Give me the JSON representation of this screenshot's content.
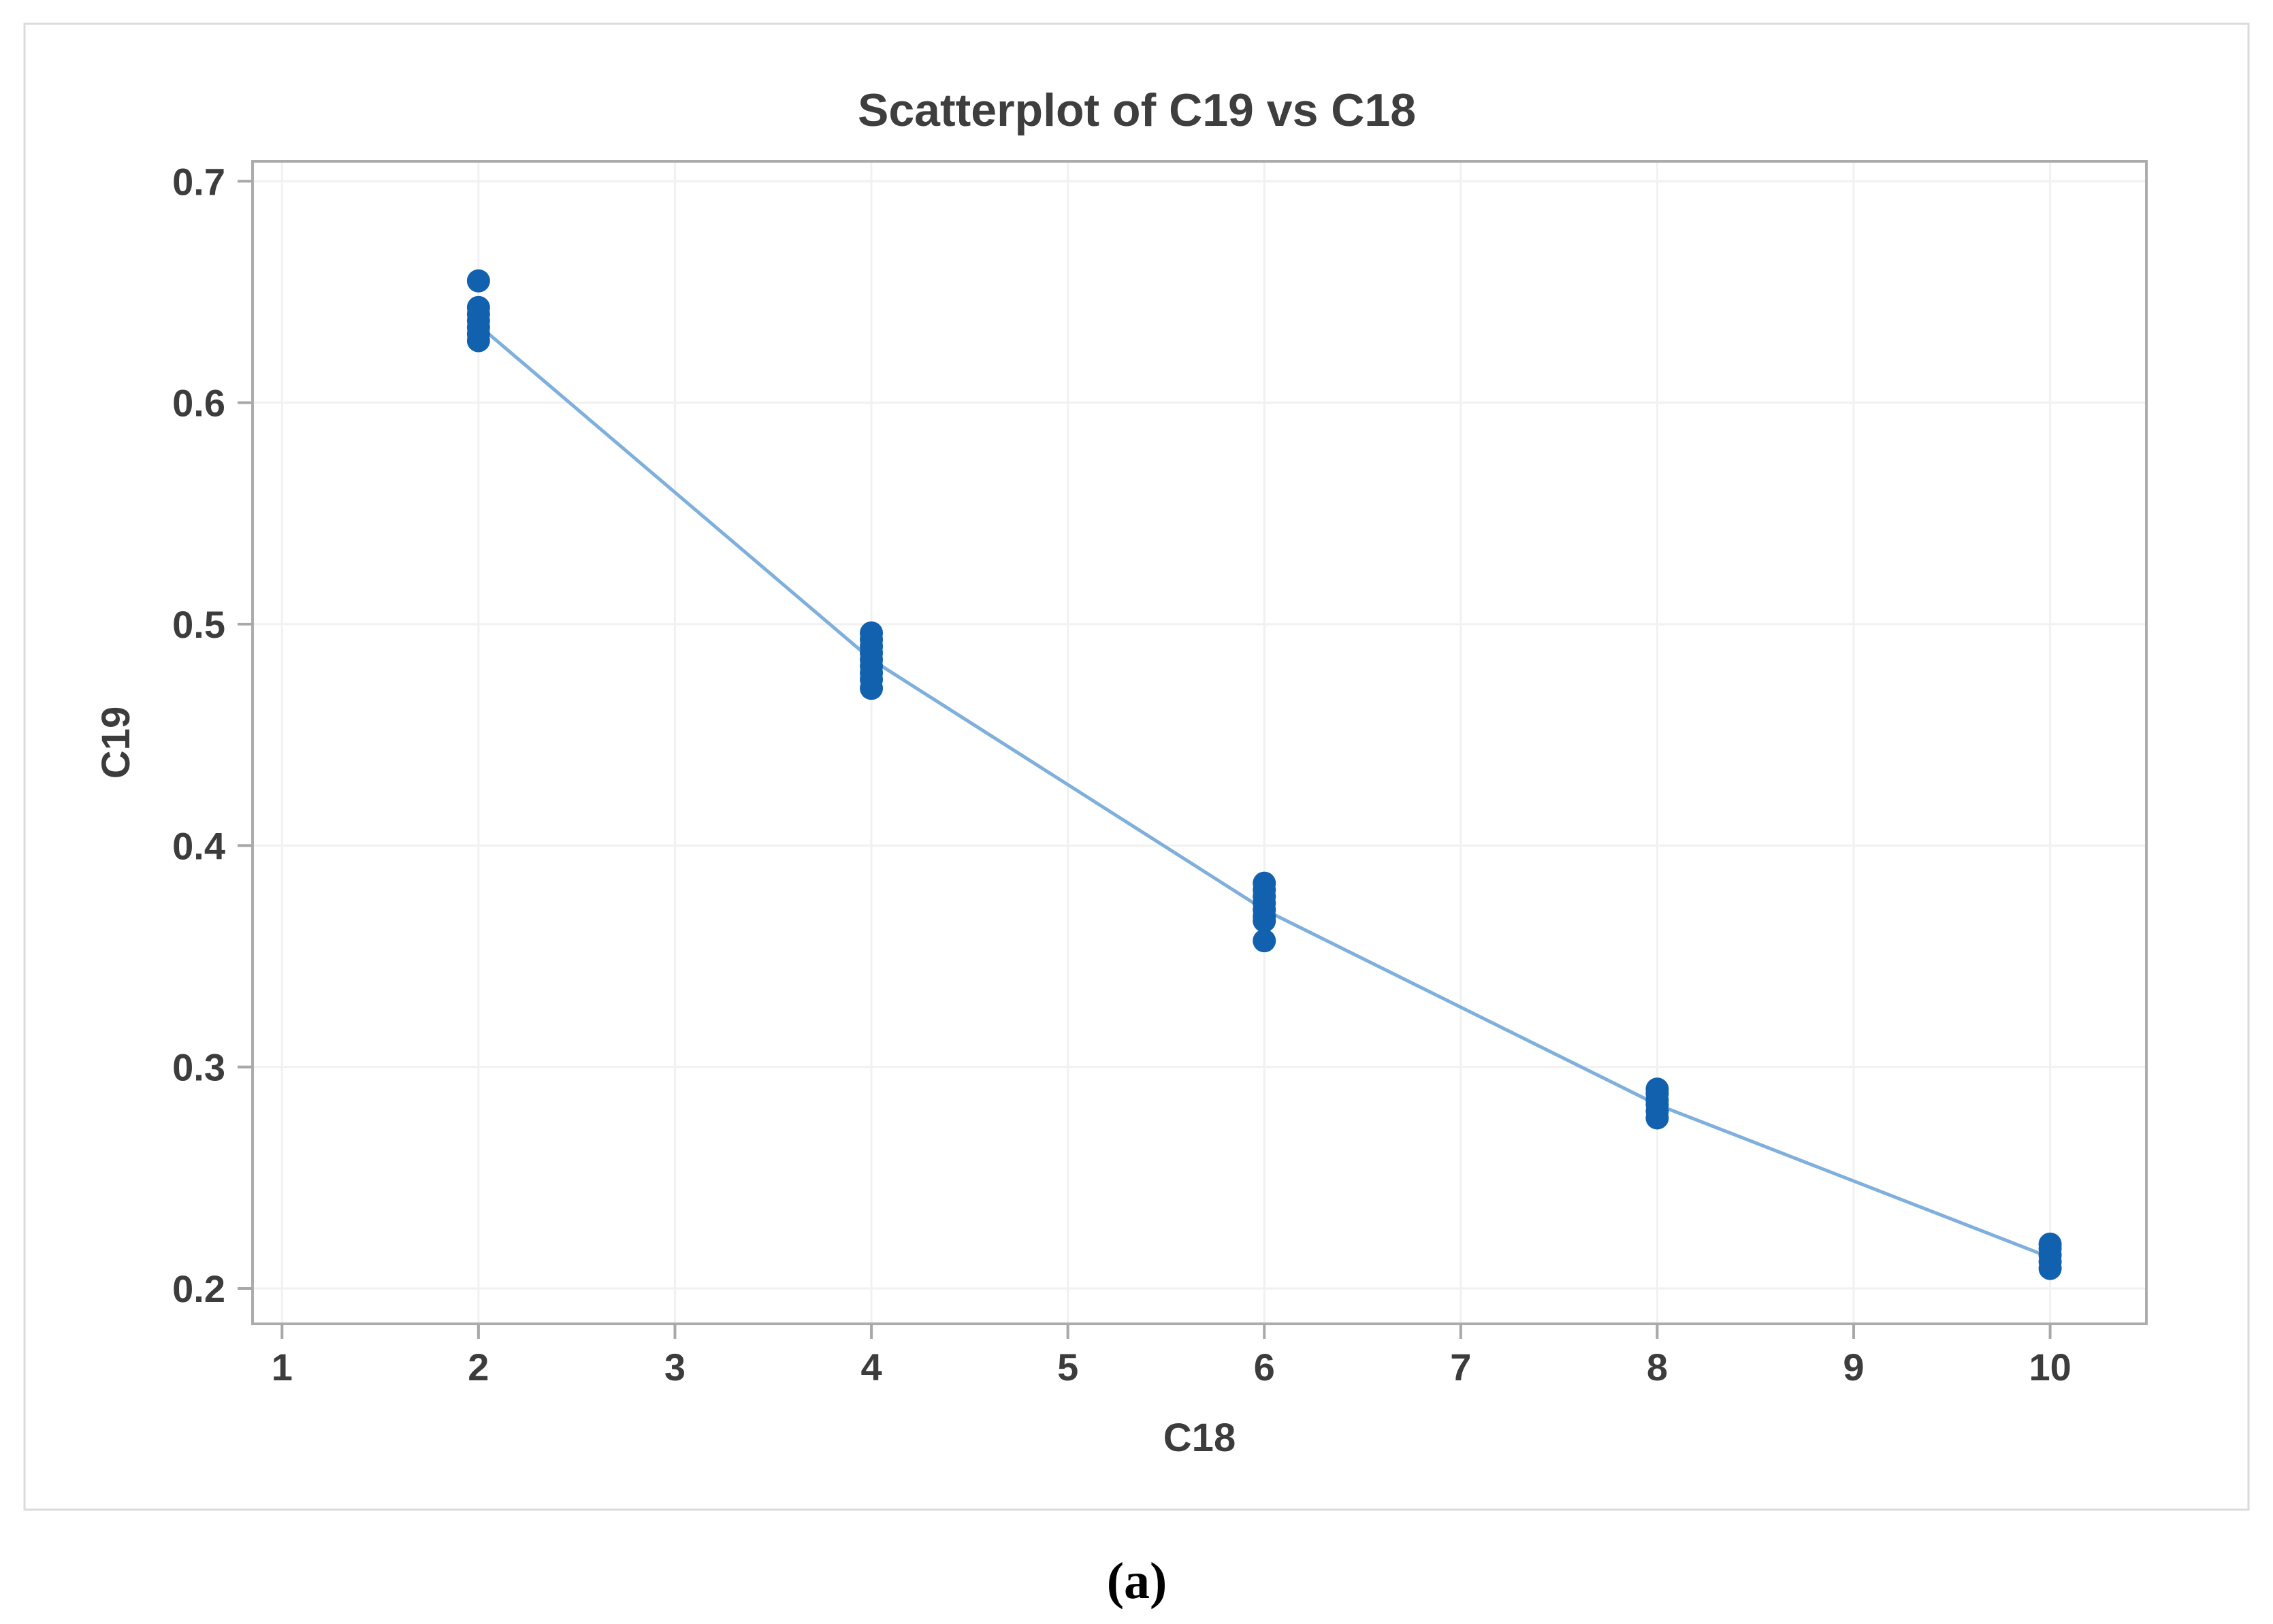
{
  "figure": {
    "caption": "(a)"
  },
  "chart_data": {
    "type": "scatter",
    "title": "Scatterplot of C19 vs C18",
    "xlabel": "C18",
    "ylabel": "C19",
    "xlim": [
      0.85,
      10.49
    ],
    "ylim": [
      0.184,
      0.709
    ],
    "x_ticks": [
      1,
      2,
      3,
      4,
      5,
      6,
      7,
      8,
      9,
      10
    ],
    "x_tick_labels": [
      "1",
      "2",
      "3",
      "4",
      "5",
      "6",
      "7",
      "8",
      "9",
      "10"
    ],
    "y_ticks": [
      0.2,
      0.3,
      0.4,
      0.5,
      0.6,
      0.7
    ],
    "y_tick_labels": [
      "0.2",
      "0.3",
      "0.4",
      "0.5",
      "0.6",
      "0.7"
    ],
    "grid": true,
    "legend": "none",
    "colors": {
      "marker": "#1161ae",
      "line": "#7fafdc"
    },
    "series": [
      {
        "name": "observations",
        "type": "scatter",
        "marker": "circle",
        "points": [
          [
            2,
            0.655
          ],
          [
            2,
            0.643
          ],
          [
            2,
            0.64
          ],
          [
            2,
            0.637
          ],
          [
            2,
            0.634
          ],
          [
            2,
            0.631
          ],
          [
            2,
            0.628
          ],
          [
            4,
            0.496
          ],
          [
            4,
            0.493
          ],
          [
            4,
            0.49
          ],
          [
            4,
            0.487
          ],
          [
            4,
            0.484
          ],
          [
            4,
            0.481
          ],
          [
            4,
            0.478
          ],
          [
            4,
            0.475
          ],
          [
            4,
            0.471
          ],
          [
            6,
            0.383
          ],
          [
            6,
            0.38
          ],
          [
            6,
            0.377
          ],
          [
            6,
            0.374
          ],
          [
            6,
            0.371
          ],
          [
            6,
            0.368
          ],
          [
            6,
            0.366
          ],
          [
            6,
            0.357
          ],
          [
            8,
            0.29
          ],
          [
            8,
            0.288
          ],
          [
            8,
            0.285
          ],
          [
            8,
            0.283
          ],
          [
            8,
            0.28
          ],
          [
            8,
            0.277
          ],
          [
            10,
            0.22
          ],
          [
            10,
            0.218
          ],
          [
            10,
            0.215
          ],
          [
            10,
            0.212
          ],
          [
            10,
            0.209
          ]
        ]
      },
      {
        "name": "connect-line",
        "type": "line",
        "points": [
          [
            2,
            0.635
          ],
          [
            4,
            0.484
          ],
          [
            6,
            0.371
          ],
          [
            8,
            0.283
          ],
          [
            10,
            0.214
          ]
        ]
      }
    ]
  }
}
